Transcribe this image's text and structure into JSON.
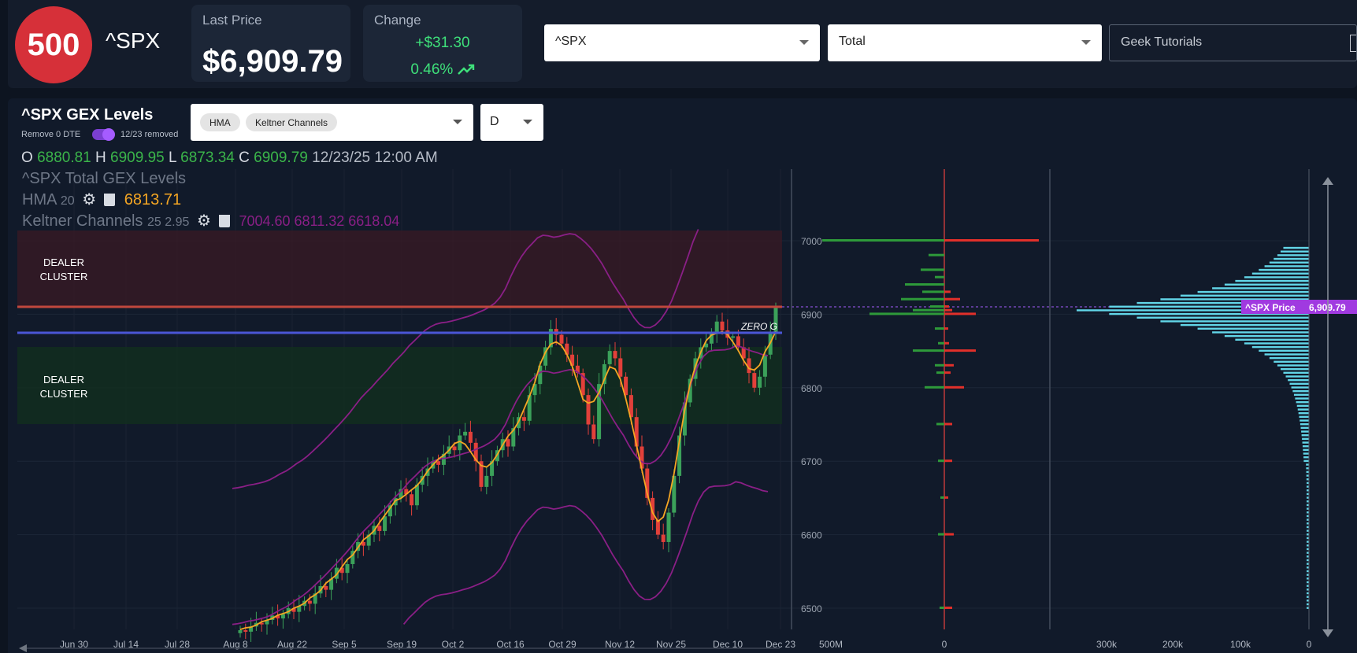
{
  "header": {
    "logo_text": "500",
    "ticker": "^SPX",
    "last_price_label": "Last Price",
    "last_price": "$6,909.79",
    "change_label": "Change",
    "change_abs": "+$31.30",
    "change_pct": "0.46%",
    "symbol_select": "^SPX",
    "gex_select": "Total",
    "tutorials_input": "Geek Tutorials"
  },
  "panel": {
    "title": "^SPX GEX Levels",
    "remove_label": "Remove 0 DTE",
    "removed_label": "12/23 removed",
    "indicators": [
      "HMA",
      "Keltner Channels"
    ],
    "timeframe": "D",
    "ohlc": {
      "o_label": "O",
      "o": "6880.81",
      "h_label": "H",
      "h": "6909.95",
      "l_label": "L",
      "l": "6873.34",
      "c_label": "C",
      "c": "6909.79",
      "time": "12/23/25 12:00 AM"
    },
    "legend_title": "^SPX Total GEX Levels",
    "hma_label": "HMA",
    "hma_param": "20",
    "hma_value": "6813.71",
    "keltner_label": "Keltner Channels",
    "keltner_params": "25 2.95",
    "keltner_values": "7004.60 6811.32 6618.04",
    "dealer_upper": [
      "DEALER",
      "CLUSTER"
    ],
    "dealer_lower": [
      "DEALER",
      "CLUSTER"
    ],
    "zero_g_label": "ZERO G",
    "price_tag_label": "^SPX Price",
    "price_tag_value": "6,909.79",
    "colors": {
      "up": "#3ba15a",
      "down": "#e2403a",
      "hma": "#f5a623",
      "keltner": "#8a1f86",
      "price_line": "#c0473d",
      "zero_gamma_line": "#4a55d6",
      "gex_bars": "#62d6e8"
    }
  },
  "chart_data": {
    "type": "candlestick",
    "ylim": [
      6450,
      7110
    ],
    "y_ticks": [
      "7000",
      "6900",
      "6800",
      "6700",
      "6600",
      "6500"
    ],
    "x_tick_labels": [
      "Jun 30",
      "Jul 14",
      "Jul 28",
      "Aug 8",
      "Aug 22",
      "Sep 5",
      "Sep 19",
      "Oct 2",
      "Oct 16",
      "Oct 29",
      "Nov 12",
      "Nov 25",
      "Dec 10",
      "Dec 23"
    ],
    "levels": {
      "upper_dealer_cluster": [
        6908,
        7012
      ],
      "lower_dealer_cluster": [
        6752,
        6855
      ],
      "zero_gamma": 6873,
      "last_price": 6909.79
    },
    "net_gex_axis": [
      "500M",
      "0"
    ],
    "abs_gex_axis": [
      "300k",
      "200k",
      "100k",
      "0"
    ]
  }
}
